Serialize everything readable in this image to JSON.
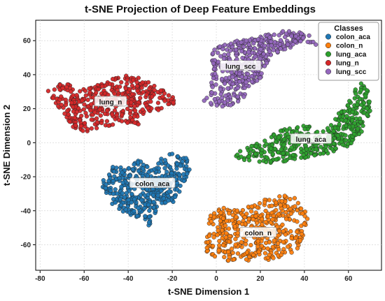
{
  "chart_data": {
    "type": "scatter",
    "title": "t-SNE Projection of Deep Feature Embeddings",
    "xlabel": "t-SNE Dimension 1",
    "ylabel": "t-SNE Dimension 2",
    "xlim": [
      -82,
      75
    ],
    "ylim": [
      -75,
      72
    ],
    "xticks": [
      -80,
      -60,
      -40,
      -20,
      0,
      20,
      40,
      60
    ],
    "yticks": [
      -60,
      -40,
      -20,
      0,
      20,
      40,
      60
    ],
    "grid": true,
    "legend": {
      "title": "Classes",
      "placement": "top-right"
    },
    "series": [
      {
        "name": "colon_aca",
        "color": "#1f77b4",
        "label_pos": [
          -29,
          -24
        ],
        "points_approx": 420,
        "extent": {
          "x": [
            -52,
            -11
          ],
          "y": [
            -52,
            -5
          ]
        }
      },
      {
        "name": "colon_n",
        "color": "#ff7f0e",
        "label_pos": [
          19,
          -53
        ],
        "points_approx": 420,
        "extent": {
          "x": [
            -5,
            42
          ],
          "y": [
            -70,
            -30
          ]
        }
      },
      {
        "name": "lung_aca",
        "color": "#2ca02c",
        "label_pos": [
          43,
          2
        ],
        "points_approx": 420,
        "extent": {
          "x": [
            7,
            70
          ],
          "y": [
            -12,
            37
          ]
        }
      },
      {
        "name": "lung_n",
        "color": "#d62728",
        "label_pos": [
          -48,
          24
        ],
        "points_approx": 420,
        "extent": {
          "x": [
            -77,
            -19
          ],
          "y": [
            6,
            40
          ]
        }
      },
      {
        "name": "lung_scc",
        "color": "#9467bd",
        "label_pos": [
          11,
          45
        ],
        "points_approx": 420,
        "extent": {
          "x": [
            -8,
            46
          ],
          "y": [
            21,
            66
          ]
        }
      }
    ]
  }
}
